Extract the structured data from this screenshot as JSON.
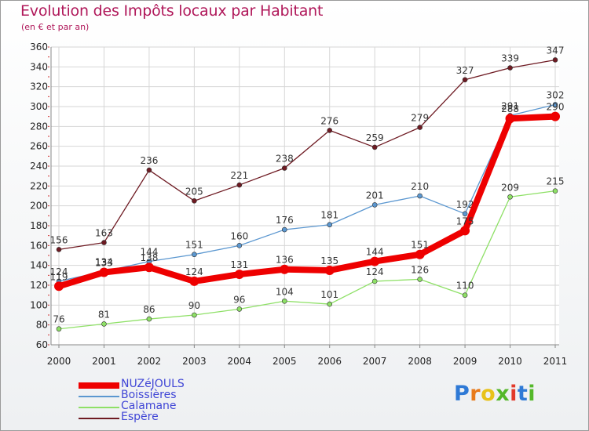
{
  "header": {
    "title": "Evolution des Impôts locaux par Habitant",
    "subtitle": "(en € et par an)"
  },
  "chart_data": {
    "type": "line",
    "title": "Evolution des Impôts locaux par Habitant",
    "subtitle": "(en € et par an)",
    "xlabel": "",
    "ylabel": "",
    "x": [
      "2000",
      "2001",
      "2002",
      "2003",
      "2004",
      "2005",
      "2006",
      "2007",
      "2008",
      "2009",
      "2010",
      "2011"
    ],
    "ylim": [
      60,
      360
    ],
    "yticks": [
      60,
      80,
      100,
      120,
      140,
      160,
      180,
      200,
      220,
      240,
      260,
      280,
      300,
      320,
      340,
      360
    ],
    "grid": true,
    "legend_position": "bottom-left",
    "series": [
      {
        "name": "Espère",
        "color": "#6e1a22",
        "values": [
          156,
          163,
          236,
          205,
          221,
          238,
          276,
          259,
          279,
          327,
          339,
          347
        ],
        "labels": [
          "156",
          "163",
          "236",
          "205",
          "221",
          "238",
          "276",
          "259",
          "279",
          "327",
          "339",
          "347"
        ]
      },
      {
        "name": "Boissières",
        "color": "#5b97d0",
        "values": [
          124,
          134,
          144,
          151,
          160,
          176,
          181,
          201,
          210,
          192,
          291,
          302
        ],
        "labels": [
          "124",
          "134",
          "144",
          "151",
          "160",
          "176",
          "181",
          "201",
          "210",
          "192",
          "291",
          "302"
        ]
      },
      {
        "name": "Calamane",
        "color": "#8ee066",
        "values": [
          76,
          81,
          86,
          90,
          96,
          104,
          101,
          124,
          126,
          110,
          209,
          215
        ],
        "labels": [
          "76",
          "81",
          "86",
          "90",
          "96",
          "104",
          "101",
          "124",
          "126",
          "110",
          "209",
          "215"
        ]
      },
      {
        "name": "NUZéJOULS",
        "color": "#ee0000",
        "values": [
          119,
          133,
          138,
          124,
          131,
          136,
          135,
          144,
          151,
          175,
          288,
          290
        ],
        "labels": [
          "119",
          "133",
          "138",
          "124",
          "131",
          "136",
          "135",
          "144",
          "151",
          "175",
          "288",
          "290"
        ]
      }
    ]
  },
  "legend": {
    "items": [
      {
        "label": "NUZéJOULS",
        "color": "#ee0000"
      },
      {
        "label": "Boissières",
        "color": "#5b97d0"
      },
      {
        "label": "Calamane",
        "color": "#8ee066"
      },
      {
        "label": "Espère",
        "color": "#6e1a22"
      }
    ]
  },
  "brand": {
    "logo_text": "Proxiti",
    "letters": [
      "P",
      "r",
      "o",
      "x",
      "i",
      "t",
      "i"
    ],
    "letter_colors": [
      "#2f7ad6",
      "#e87a1a",
      "#e8c21a",
      "#55b82a",
      "#e23a2a",
      "#2f7ad6",
      "#55b82a"
    ]
  }
}
